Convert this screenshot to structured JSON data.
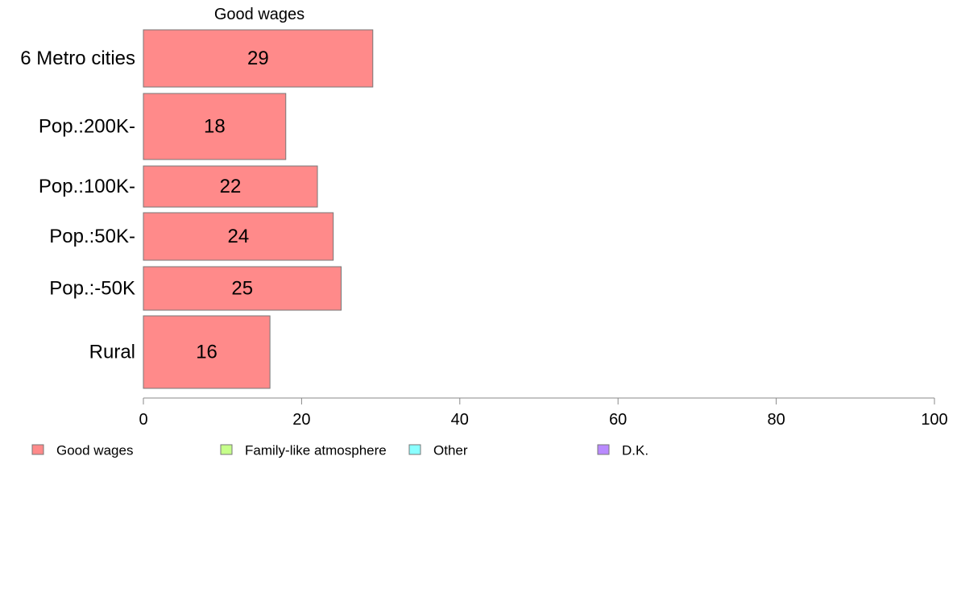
{
  "chart_data": {
    "type": "bar",
    "orientation": "horizontal",
    "title": "Good wages",
    "categories": [
      "6 Metro cities",
      "Pop.:200K-",
      "Pop.:100K-",
      "Pop.:50K-",
      "Pop.:-50K",
      "Rural"
    ],
    "series": [
      {
        "name": "Good wages",
        "values": [
          29,
          18,
          22,
          24,
          25,
          16
        ],
        "color": "#ff8a8a"
      }
    ],
    "xlim": [
      0,
      100
    ],
    "xticks": [
      0,
      20,
      40,
      60,
      80,
      100
    ],
    "grid": false,
    "legend_position": "bottom",
    "legend": [
      {
        "label": "Good wages",
        "color": "#ff8a8a"
      },
      {
        "label": "Family-like atmosphere",
        "color": "#c6ff8a"
      },
      {
        "label": "Other",
        "color": "#8affff"
      },
      {
        "label": "D.K.",
        "color": "#b98aff"
      }
    ]
  }
}
